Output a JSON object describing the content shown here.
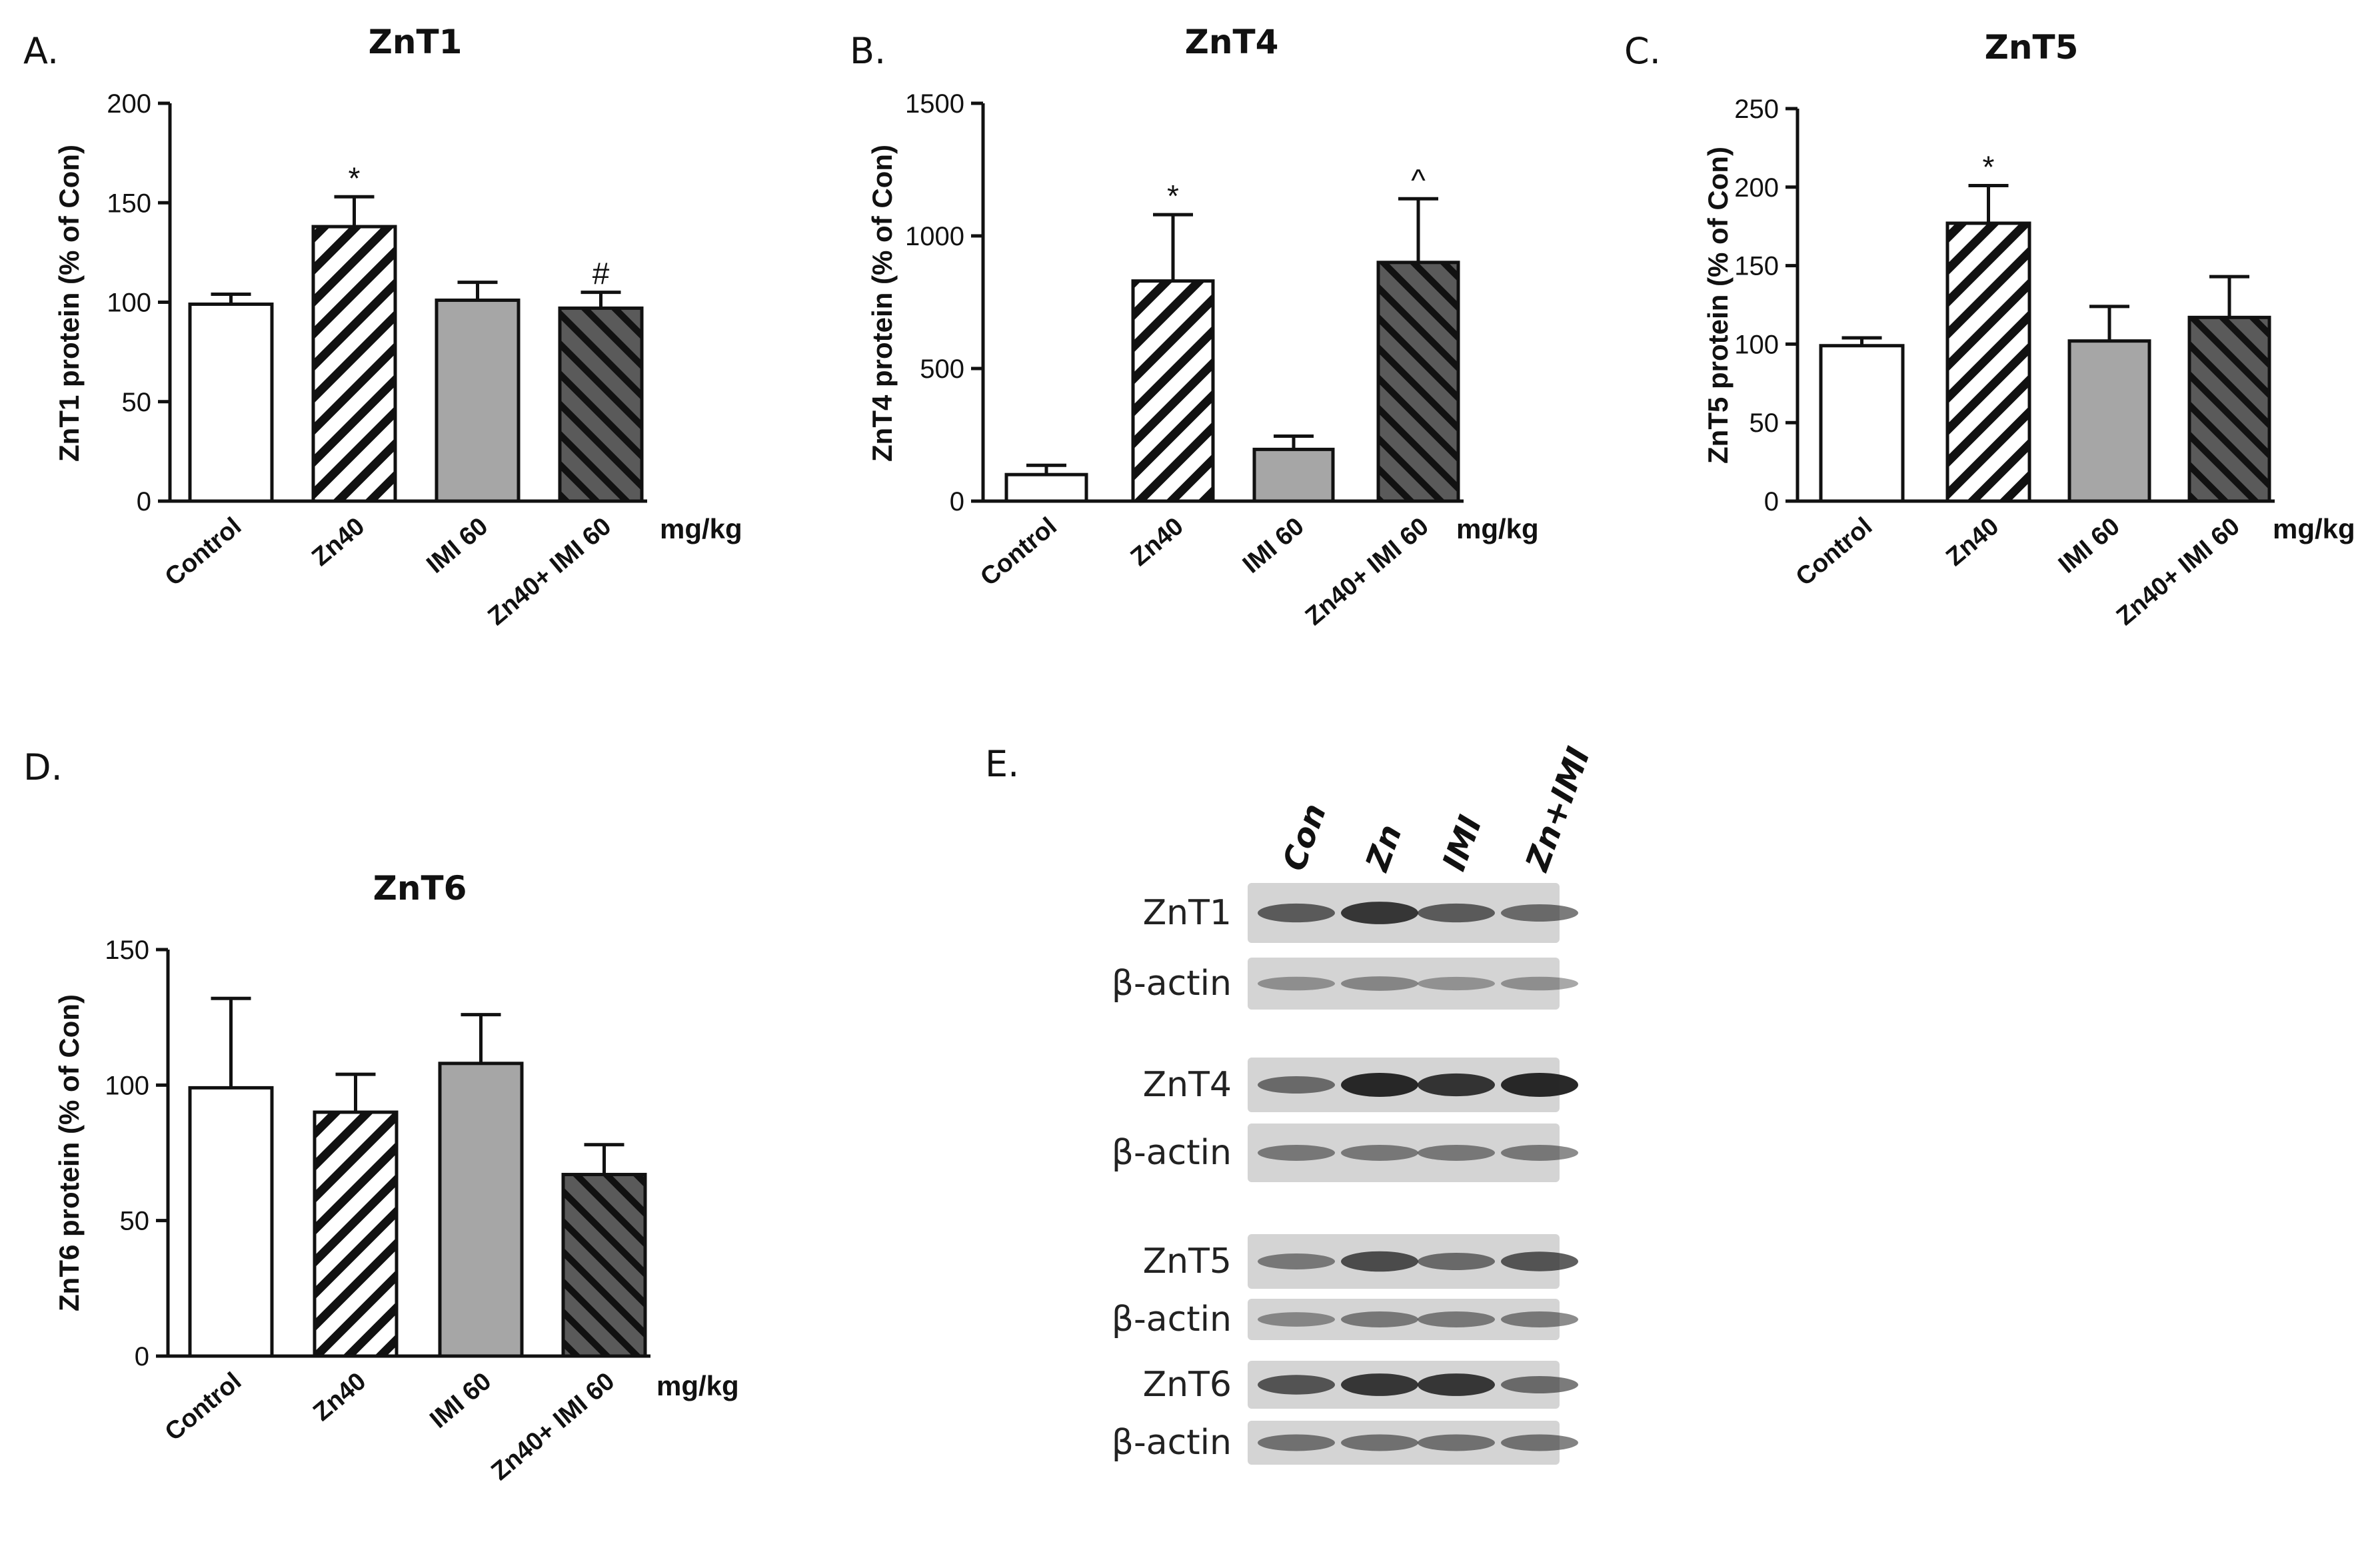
{
  "colors": {
    "control": "#ffffff",
    "zn40": "#ffffff",
    "imi60": "#a6a6a6",
    "zn40_imi60": "#5a5a5a",
    "stroke": "#111111",
    "blot_bg": "#d4d4d4",
    "band": "#1e1e1e"
  },
  "chart_data": [
    {
      "panel": "A.",
      "type": "bar",
      "title": "ZnT1",
      "ylabel": "ZnT1 protein (% of Con)",
      "unit": "mg/kg",
      "categories": [
        "Control",
        "Zn40",
        "IMI 60",
        "Zn40+ IMI 60"
      ],
      "values": [
        99,
        138,
        101,
        97
      ],
      "errors": [
        5,
        15,
        9,
        8
      ],
      "annotations": [
        "",
        "*",
        "",
        "#"
      ],
      "ylim": [
        0,
        200
      ],
      "yticks": [
        0,
        50,
        100,
        150,
        200
      ],
      "tick_labels": [
        "0",
        "50",
        "100",
        "150",
        "200"
      ]
    },
    {
      "panel": "B.",
      "type": "bar",
      "title": "ZnT4",
      "ylabel": "ZnT4 protein (% of Con)",
      "unit": "mg/kg",
      "categories": [
        "Control",
        "Zn40",
        "IMI 60",
        "Zn40+ IMI 60"
      ],
      "values": [
        100,
        830,
        195,
        900
      ],
      "errors": [
        35,
        250,
        50,
        240
      ],
      "annotations": [
        "",
        "*",
        "",
        "^"
      ],
      "ylim": [
        0,
        1500
      ],
      "yticks": [
        0,
        500,
        1000,
        1500
      ],
      "tick_labels": [
        "0",
        "500",
        "1000",
        "1500"
      ]
    },
    {
      "panel": "C.",
      "type": "bar",
      "title": "ZnT5",
      "ylabel": "ZnT5 protein (% of Con)",
      "unit": "mg/kg",
      "categories": [
        "Control",
        "Zn40",
        "IMI 60",
        "Zn40+ IMI 60"
      ],
      "values": [
        99,
        177,
        102,
        117
      ],
      "errors": [
        5,
        24,
        22,
        26
      ],
      "annotations": [
        "",
        "*",
        "",
        ""
      ],
      "ylim": [
        0,
        250
      ],
      "yticks": [
        0,
        50,
        100,
        150,
        200,
        250
      ],
      "tick_labels": [
        "0",
        "50",
        "100",
        "150",
        "200",
        "250"
      ]
    },
    {
      "panel": "D.",
      "type": "bar",
      "title": "ZnT6",
      "ylabel": "ZnT6 protein (% of Con)",
      "unit": "mg/kg",
      "categories": [
        "Control",
        "Zn40",
        "IMI 60",
        "Zn40+ IMI 60"
      ],
      "values": [
        99,
        90,
        108,
        67
      ],
      "errors": [
        33,
        14,
        18,
        11
      ],
      "annotations": [
        "",
        "",
        "",
        ""
      ],
      "ylim": [
        0,
        150
      ],
      "yticks": [
        0,
        50,
        100,
        150
      ],
      "tick_labels": [
        "0",
        "50",
        "100",
        "150"
      ]
    }
  ],
  "blot": {
    "panel": "E.",
    "lanes": [
      "Con",
      "Zn",
      "IMI",
      "Zn+IMI"
    ],
    "rows": [
      {
        "label": "ZnT1",
        "intensities": [
          0.65,
          0.9,
          0.65,
          0.55
        ]
      },
      {
        "label": "β-actin",
        "intensities": [
          0.3,
          0.35,
          0.28,
          0.3
        ]
      },
      {
        "label": "ZnT4",
        "intensities": [
          0.55,
          1.0,
          0.92,
          1.0
        ]
      },
      {
        "label": "β-actin",
        "intensities": [
          0.45,
          0.45,
          0.45,
          0.45
        ]
      },
      {
        "label": "ZnT5",
        "intensities": [
          0.45,
          0.75,
          0.55,
          0.7
        ]
      },
      {
        "label": "β-actin",
        "intensities": [
          0.35,
          0.45,
          0.45,
          0.45
        ]
      },
      {
        "label": "ZnT6",
        "intensities": [
          0.7,
          0.9,
          0.9,
          0.55
        ]
      },
      {
        "label": "β-actin",
        "intensities": [
          0.5,
          0.5,
          0.5,
          0.5
        ]
      }
    ]
  }
}
